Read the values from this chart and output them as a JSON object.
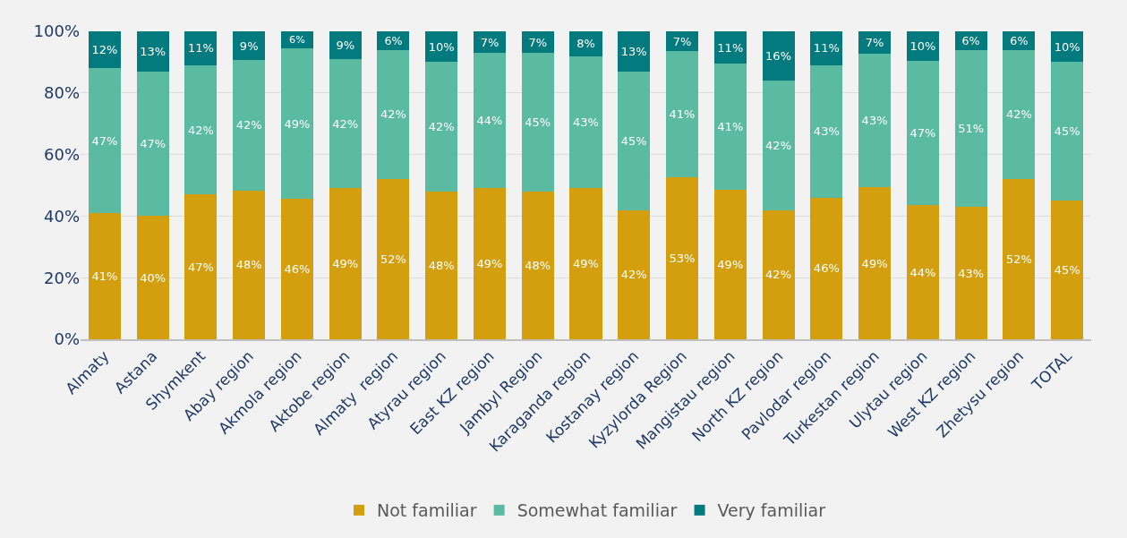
{
  "chart_data": {
    "type": "bar",
    "stacked": true,
    "categories": [
      "Almaty",
      "Astana",
      "Shymkent",
      "Abay region",
      "Akmola region",
      "Aktobe region",
      "Almaty  region",
      "Atyrau region",
      "East KZ region",
      "Jambyl Region",
      "Karaganda region",
      "Kostanay region",
      "Kyzylorda Region",
      "Mangistau region",
      "North KZ region",
      "Pavlodar region",
      "Turkestan region",
      "Ulytau region",
      "West KZ region",
      "Zhetysu region",
      "TOTAL"
    ],
    "series": [
      {
        "name": "Not familiar",
        "color": "#d49f0e",
        "values": [
          41,
          40,
          47,
          48.4,
          45.5,
          49,
          52,
          48,
          49,
          48,
          49,
          42,
          52.7,
          48.5,
          42,
          46,
          49.3,
          43.5,
          43,
          52,
          45
        ],
        "value_labels": [
          "41%",
          "40%",
          "47%",
          "48%",
          "46%",
          "49%",
          "52%",
          "48%",
          "49%",
          "48%",
          "49%",
          "42%",
          "53%",
          "49%",
          "42%",
          "46%",
          "49%",
          "44%",
          "43%",
          "52%",
          "45%"
        ]
      },
      {
        "name": "Somewhat familiar",
        "color": "#5bbaa2",
        "values": [
          47,
          47,
          42,
          42.2,
          49,
          42,
          42,
          42,
          44,
          45,
          43,
          45,
          40.8,
          41,
          42,
          43,
          43.4,
          46.8,
          51,
          42,
          45
        ],
        "value_labels": [
          "47%",
          "47%",
          "42%",
          "42%",
          "49%",
          "42%",
          "42%",
          "42%",
          "44%",
          "45%",
          "43%",
          "45%",
          "41%",
          "41%",
          "42%",
          "43%",
          "43%",
          "47%",
          "51%",
          "42%",
          "45%"
        ]
      },
      {
        "name": "Very familiar",
        "color": "#037a7d",
        "values": [
          12,
          13,
          11,
          9.4,
          5.5,
          9,
          6,
          10,
          7,
          7,
          8,
          13,
          6.5,
          10.5,
          16,
          11,
          7.3,
          9.7,
          6,
          6,
          10
        ],
        "value_labels": [
          "12%",
          "13%",
          "11%",
          "9%",
          "6%",
          "9%",
          "6%",
          "10%",
          "7%",
          "7%",
          "8%",
          "13%",
          "7%",
          "11%",
          "16%",
          "11%",
          "7%",
          "10%",
          "6%",
          "6%",
          "10%"
        ]
      }
    ],
    "ylim": [
      0,
      100
    ],
    "yticks": [
      {
        "value": 0,
        "label": "0%"
      },
      {
        "value": 20,
        "label": "20%"
      },
      {
        "value": 40,
        "label": "40%"
      },
      {
        "value": 60,
        "label": "60%"
      },
      {
        "value": 80,
        "label": "80%"
      },
      {
        "value": 100,
        "label": "100%"
      }
    ],
    "grid": "y",
    "legend": "bottom"
  }
}
